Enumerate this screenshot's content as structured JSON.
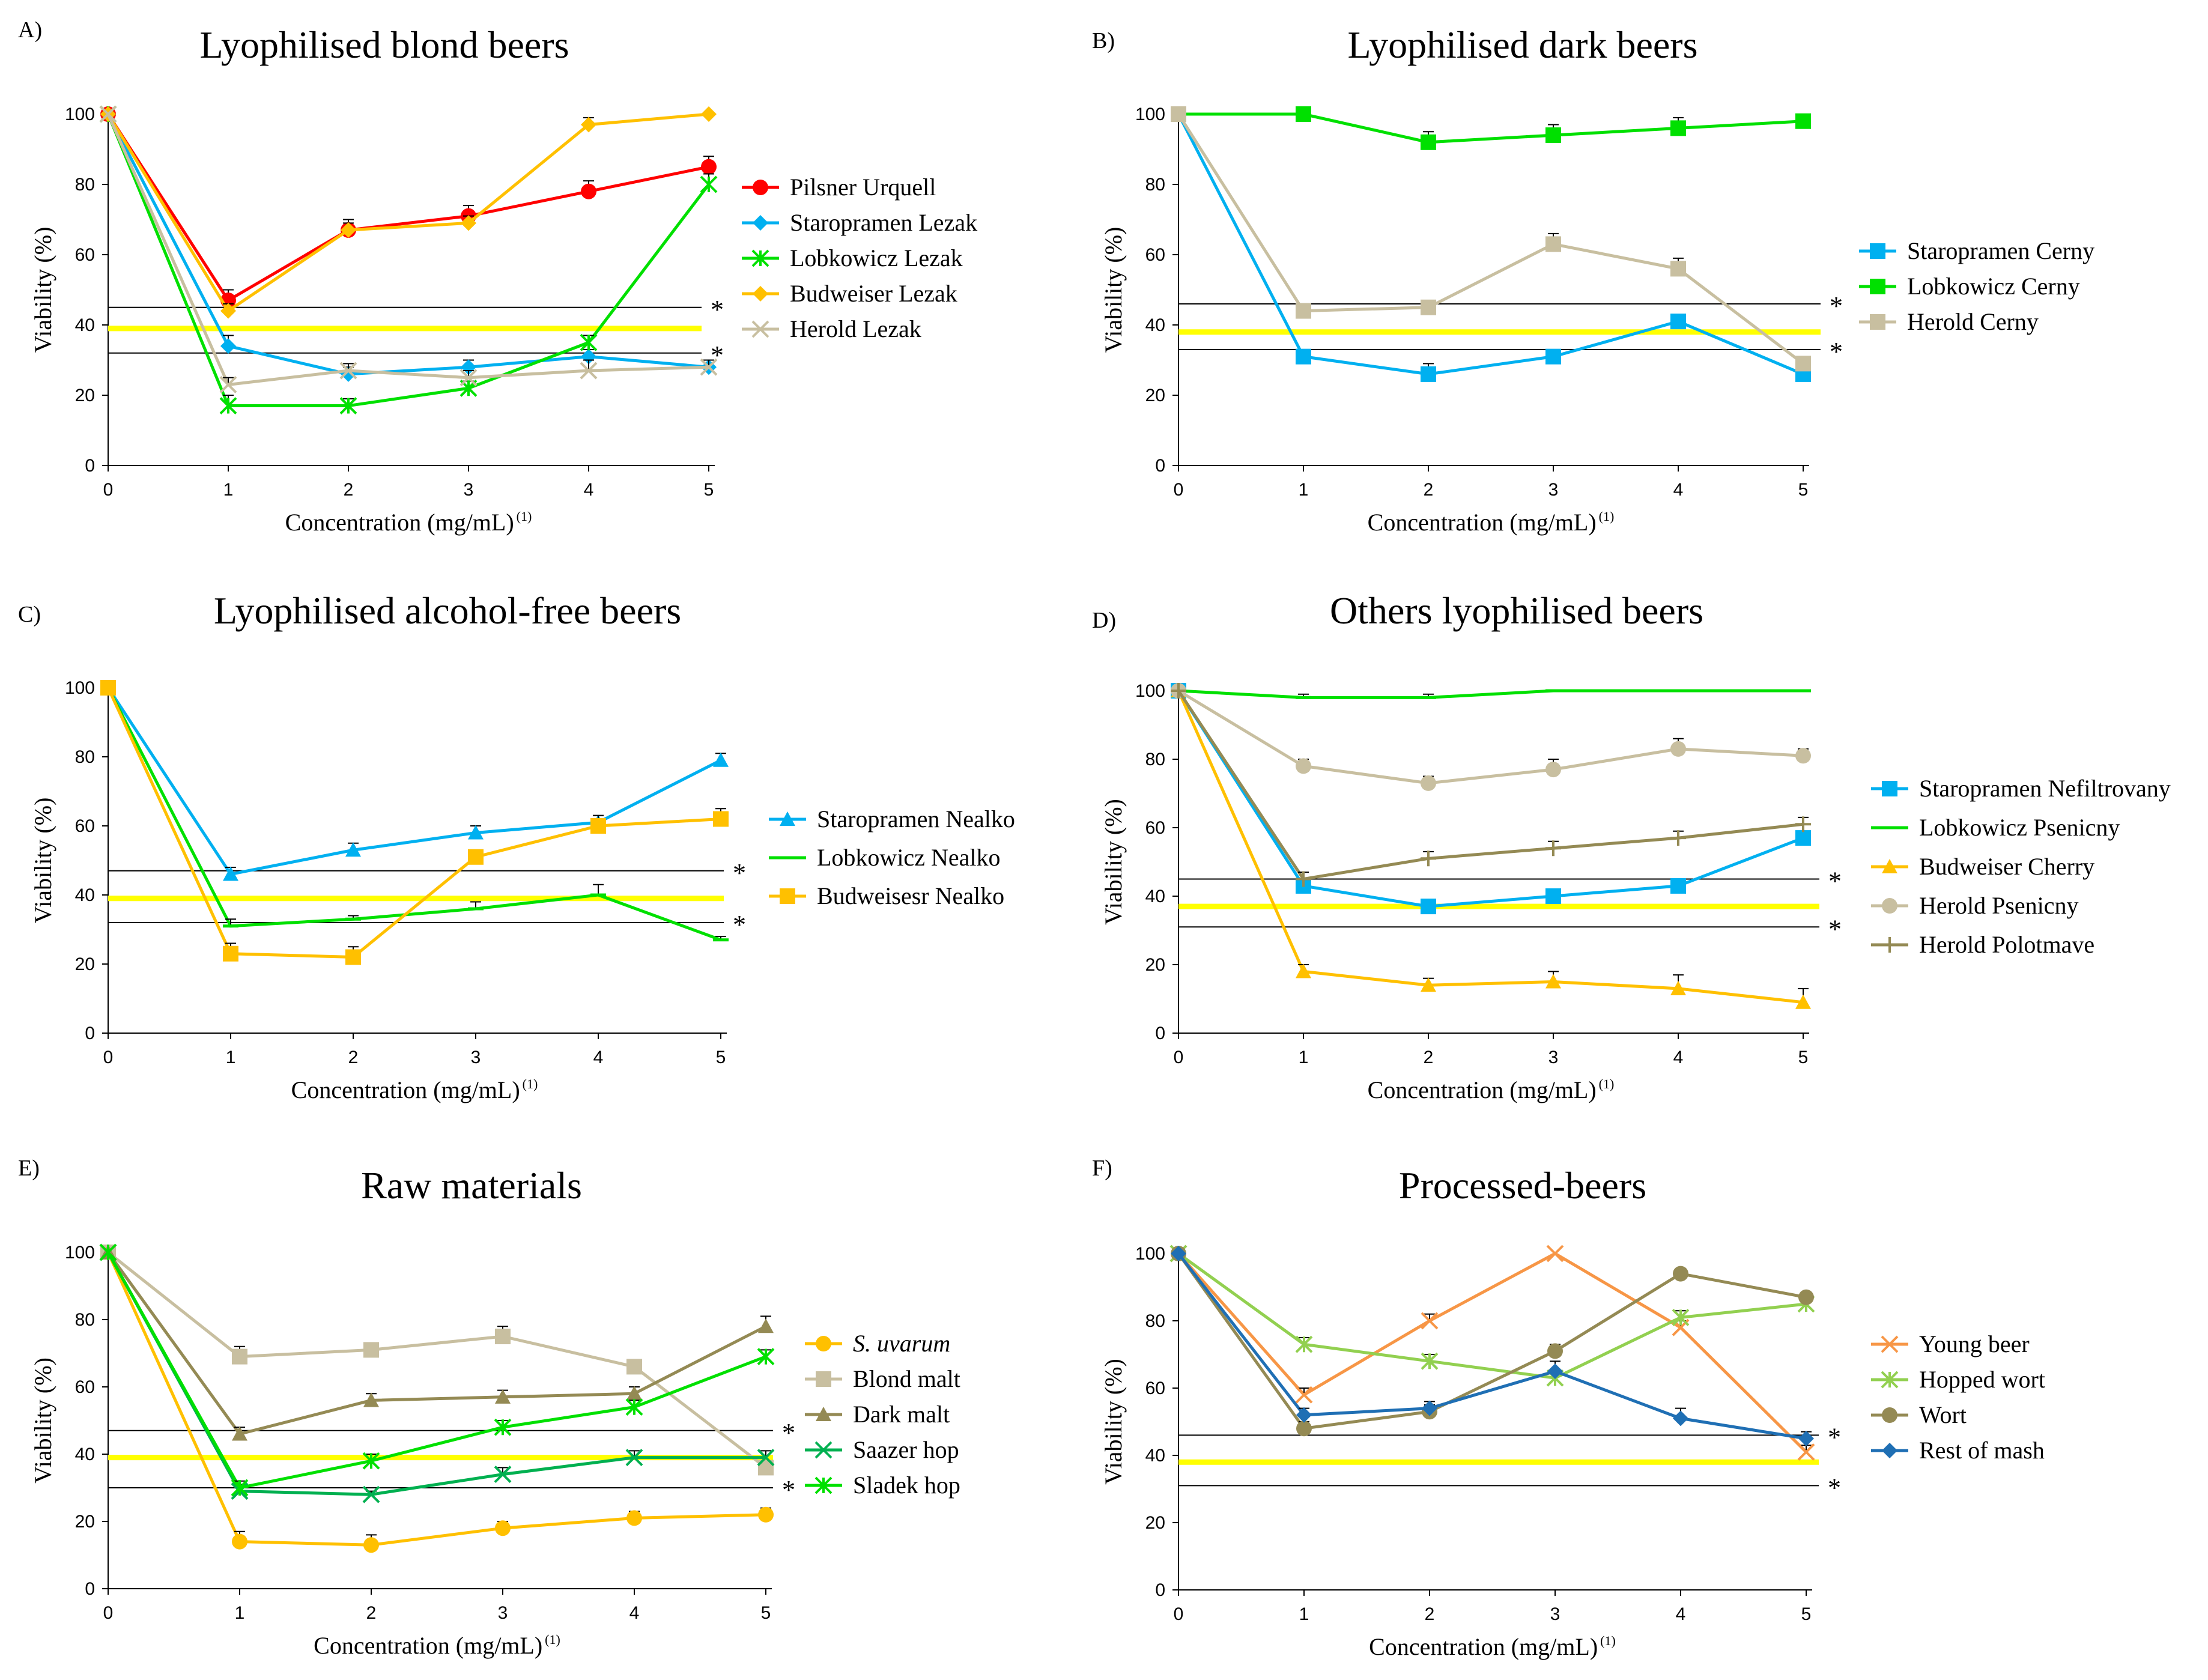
{
  "figure": {
    "x_values": [
      0,
      1,
      2,
      3,
      4,
      5
    ],
    "ylim": [
      0,
      100
    ],
    "yticks": [
      0,
      20,
      40,
      60,
      80,
      100
    ],
    "xticks": [
      0,
      1,
      2,
      3,
      4,
      5
    ],
    "xlabel": "Concentration (mg/mL)",
    "xlabel_sup": "(1)",
    "ylabel": "Viability (%)",
    "significance_marker": "*",
    "reference_line_color": "#ffff00",
    "threshold_line_color": "#000000"
  },
  "chart_data": [
    {
      "type": "line",
      "panel": "A)",
      "title": "Lyophilised blond beers",
      "xlabel": "Concentration (mg/mL)",
      "ylabel": "Viability (%)",
      "x": [
        0,
        1,
        2,
        3,
        4,
        5
      ],
      "ylim": [
        0,
        100
      ],
      "reference_line": 39,
      "threshold_lines": [
        45,
        32
      ],
      "legend_position": "right",
      "series": [
        {
          "name": "Pilsner Urquell",
          "color": "#ff0000",
          "marker": "circle",
          "values": [
            100,
            47,
            67,
            71,
            78,
            85
          ],
          "errors": [
            0,
            3,
            3,
            3,
            3,
            3
          ]
        },
        {
          "name": "Staropramen Lezak",
          "color": "#00b0f0",
          "marker": "diamond",
          "values": [
            100,
            34,
            26,
            28,
            31,
            28
          ],
          "errors": [
            0,
            3,
            2,
            2,
            2,
            2
          ]
        },
        {
          "name": "Lobkowicz Lezak",
          "color": "#00e000",
          "marker": "star",
          "values": [
            100,
            17,
            17,
            22,
            35,
            80
          ],
          "errors": [
            0,
            3,
            2,
            2,
            2,
            3
          ]
        },
        {
          "name": "Budweiser Lezak",
          "color": "#ffc000",
          "marker": "diamond",
          "values": [
            100,
            44,
            67,
            69,
            97,
            100
          ],
          "errors": [
            0,
            2,
            2,
            2,
            2,
            0
          ]
        },
        {
          "name": "Herold Lezak",
          "color": "#c8bfa0",
          "marker": "x",
          "values": [
            100,
            23,
            27,
            25,
            27,
            28
          ],
          "errors": [
            0,
            2,
            2,
            2,
            3,
            2
          ]
        }
      ]
    },
    {
      "type": "line",
      "panel": "B)",
      "title": "Lyophilised dark beers",
      "xlabel": "Concentration (mg/mL)",
      "ylabel": "Viability (%)",
      "x": [
        0,
        1,
        2,
        3,
        4,
        5
      ],
      "ylim": [
        0,
        100
      ],
      "reference_line": 38,
      "threshold_lines": [
        46,
        33
      ],
      "legend_position": "right",
      "series": [
        {
          "name": "Staropramen Cerny",
          "color": "#00b0f0",
          "marker": "square",
          "values": [
            100,
            31,
            26,
            31,
            41,
            26
          ],
          "errors": [
            0,
            2,
            3,
            2,
            2,
            2
          ]
        },
        {
          "name": "Lobkowicz Cerny",
          "color": "#00e000",
          "marker": "square",
          "values": [
            100,
            100,
            92,
            94,
            96,
            98
          ],
          "errors": [
            0,
            2,
            3,
            3,
            3,
            2
          ]
        },
        {
          "name": "Herold Cerny",
          "color": "#c8bfa0",
          "marker": "square",
          "values": [
            100,
            44,
            45,
            63,
            56,
            29
          ],
          "errors": [
            0,
            2,
            2,
            3,
            3,
            2
          ]
        }
      ]
    },
    {
      "type": "line",
      "panel": "C)",
      "title": "Lyophilised alcohol-free beers",
      "xlabel": "Concentration (mg/mL)",
      "ylabel": "Viability (%)",
      "x": [
        0,
        1,
        2,
        3,
        4,
        5
      ],
      "ylim": [
        0,
        100
      ],
      "reference_line": 39,
      "threshold_lines": [
        47,
        32
      ],
      "legend_position": "right",
      "series": [
        {
          "name": "Staropramen Nealko",
          "color": "#00b0f0",
          "marker": "triangle",
          "values": [
            100,
            46,
            53,
            58,
            61,
            79
          ],
          "errors": [
            0,
            2,
            2,
            2,
            2,
            2
          ]
        },
        {
          "name": "Lobkowicz Nealko",
          "color": "#00e000",
          "marker": "dash",
          "values": [
            100,
            31,
            33,
            36,
            40,
            27
          ],
          "errors": [
            0,
            2,
            1,
            2,
            3,
            1
          ]
        },
        {
          "name": "Budweisesr Nealko",
          "color": "#ffc000",
          "marker": "square",
          "values": [
            100,
            23,
            22,
            51,
            60,
            62
          ],
          "errors": [
            0,
            3,
            3,
            2,
            3,
            3
          ]
        }
      ]
    },
    {
      "type": "line",
      "panel": "D)",
      "title": "Others lyophilised beers",
      "xlabel": "Concentration (mg/mL)",
      "ylabel": "Viability (%)",
      "x": [
        0,
        1,
        2,
        3,
        4,
        5
      ],
      "ylim": [
        0,
        100
      ],
      "reference_line": 37,
      "threshold_lines": [
        45,
        31
      ],
      "legend_position": "right",
      "series": [
        {
          "name": "Staropramen Nefiltrovany",
          "color": "#00b0f0",
          "marker": "square",
          "values": [
            100,
            43,
            37,
            40,
            43,
            57
          ],
          "errors": [
            0,
            2,
            2,
            2,
            2,
            2
          ]
        },
        {
          "name": "Lobkowicz Psenicny",
          "color": "#00e000",
          "marker": "dash",
          "values": [
            100,
            98,
            98,
            100,
            100,
            100
          ],
          "errors": [
            0,
            1,
            1,
            0,
            0,
            0
          ]
        },
        {
          "name": "Budweiser Cherry",
          "color": "#ffc000",
          "marker": "triangle",
          "values": [
            100,
            18,
            14,
            15,
            13,
            9
          ],
          "errors": [
            0,
            2,
            2,
            3,
            4,
            4
          ]
        },
        {
          "name": "Herold Psenicny",
          "color": "#c8bfa0",
          "marker": "circle",
          "values": [
            100,
            78,
            73,
            77,
            83,
            81
          ],
          "errors": [
            0,
            2,
            2,
            3,
            3,
            2
          ]
        },
        {
          "name": "Herold Polotmave",
          "color": "#948a54",
          "marker": "plus",
          "values": [
            100,
            45,
            51,
            54,
            57,
            61
          ],
          "errors": [
            0,
            2,
            2,
            2,
            2,
            2
          ]
        }
      ]
    },
    {
      "type": "line",
      "panel": "E)",
      "title": "Raw materials",
      "xlabel": "Concentration (mg/mL)",
      "ylabel": "Viability (%)",
      "x": [
        0,
        1,
        2,
        3,
        4,
        5
      ],
      "ylim": [
        0,
        100
      ],
      "reference_line": 39,
      "threshold_lines": [
        47,
        30
      ],
      "legend_position": "right",
      "series": [
        {
          "name": "S. uvarum",
          "italic_prefix": "S. uvarum",
          "color": "#ffc000",
          "marker": "circle",
          "values": [
            100,
            14,
            13,
            18,
            21,
            22
          ],
          "errors": [
            0,
            3,
            3,
            2,
            2,
            2
          ]
        },
        {
          "name": "Blond malt",
          "color": "#c8bfa0",
          "marker": "square",
          "values": [
            100,
            69,
            71,
            75,
            66,
            36
          ],
          "errors": [
            0,
            3,
            2,
            3,
            2,
            2
          ]
        },
        {
          "name": "Dark malt",
          "color": "#948a54",
          "marker": "triangle",
          "values": [
            100,
            46,
            56,
            57,
            58,
            78
          ],
          "errors": [
            0,
            2,
            2,
            2,
            2,
            3
          ]
        },
        {
          "name": "Saazer hop",
          "color": "#00b050",
          "marker": "x",
          "values": [
            100,
            29,
            28,
            34,
            39,
            39
          ],
          "errors": [
            0,
            2,
            1,
            2,
            2,
            2
          ]
        },
        {
          "name": "Sladek hop",
          "color": "#00e000",
          "marker": "star",
          "values": [
            100,
            30,
            38,
            48,
            54,
            69
          ],
          "errors": [
            0,
            2,
            2,
            2,
            2,
            2
          ]
        }
      ]
    },
    {
      "type": "line",
      "panel": "F)",
      "title": "Processed-beers",
      "xlabel": "Concentration (mg/mL)",
      "ylabel": "Viability (%)",
      "x": [
        0,
        1,
        2,
        3,
        4,
        5
      ],
      "ylim": [
        0,
        100
      ],
      "reference_line": 38,
      "threshold_lines": [
        46,
        31
      ],
      "legend_position": "right",
      "series": [
        {
          "name": "Young beer",
          "color": "#f79646",
          "marker": "x",
          "values": [
            100,
            58,
            80,
            100,
            78,
            41
          ],
          "errors": [
            0,
            2,
            2,
            0,
            2,
            2
          ]
        },
        {
          "name": "Hopped wort",
          "color": "#92d050",
          "marker": "star",
          "values": [
            100,
            73,
            68,
            63,
            81,
            85
          ],
          "errors": [
            0,
            2,
            2,
            2,
            2,
            1
          ]
        },
        {
          "name": "Wort",
          "color": "#948a54",
          "marker": "circle",
          "values": [
            100,
            48,
            53,
            71,
            94,
            87
          ],
          "errors": [
            0,
            2,
            2,
            2,
            1,
            1
          ]
        },
        {
          "name": "Rest of mash",
          "color": "#1f6fb4",
          "marker": "diamond",
          "values": [
            100,
            52,
            54,
            65,
            51,
            45
          ],
          "errors": [
            0,
            2,
            2,
            3,
            3,
            2
          ]
        }
      ]
    }
  ]
}
